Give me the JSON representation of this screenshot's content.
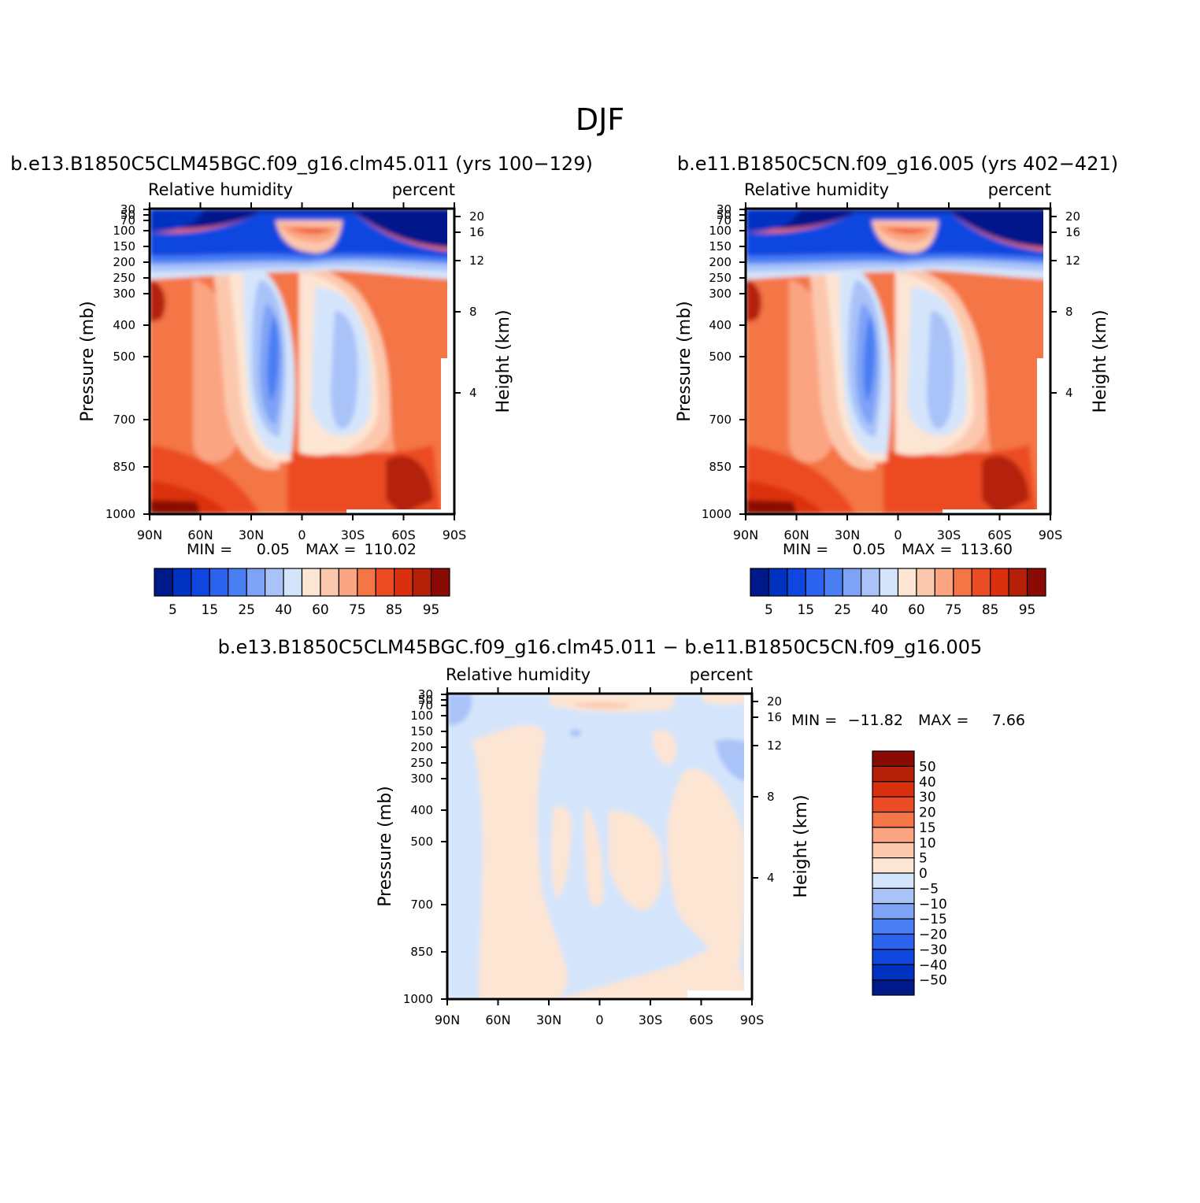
{
  "figure_title": "DJF",
  "chart_data": [
    {
      "type": "contour",
      "title": "b.e13.B1850C5CLM45BGC.f09_g16.clm45.011 (yrs 100−129)",
      "left_subtitle": "Relative humidity",
      "right_subtitle": "percent",
      "ylabel": "Pressure (mb)",
      "y2label": "Height (km)",
      "x_ticks": [
        "90N",
        "60N",
        "30N",
        "0",
        "30S",
        "60S",
        "90S"
      ],
      "y_ticks": [
        "30",
        "50",
        "70",
        "100",
        "150",
        "200",
        "250",
        "300",
        "400",
        "500",
        "700",
        "850",
        "1000"
      ],
      "y2_ticks": [
        "20",
        "16",
        "12",
        "8",
        "4"
      ],
      "min_label": "MIN =",
      "min_value": "0.05",
      "max_label": "MAX =",
      "max_value": "110.02",
      "colorbar_labels": [
        "5",
        "15",
        "25",
        "40",
        "60",
        "75",
        "85",
        "95"
      ],
      "colorbar_colors": [
        "#00198a",
        "#0032c2",
        "#1046e0",
        "#2b62ee",
        "#4a7ef3",
        "#7ea2f6",
        "#a9c3f9",
        "#d4e5fb",
        "#fde5d3",
        "#fcc8ad",
        "#fba482",
        "#f47545",
        "#ec4c24",
        "#db3010",
        "#b42008",
        "#8a0b05"
      ]
    },
    {
      "type": "contour",
      "title": "b.e11.B1850C5CN.f09_g16.005 (yrs 402−421)",
      "left_subtitle": "Relative humidity",
      "right_subtitle": "percent",
      "ylabel": "Pressure (mb)",
      "y2label": "Height (km)",
      "x_ticks": [
        "90N",
        "60N",
        "30N",
        "0",
        "30S",
        "60S",
        "90S"
      ],
      "y_ticks": [
        "30",
        "50",
        "70",
        "100",
        "150",
        "200",
        "250",
        "300",
        "400",
        "500",
        "700",
        "850",
        "1000"
      ],
      "y2_ticks": [
        "20",
        "16",
        "12",
        "8",
        "4"
      ],
      "min_label": "MIN =",
      "min_value": "0.05",
      "max_label": "MAX =",
      "max_value": "113.60",
      "colorbar_labels": [
        "5",
        "15",
        "25",
        "40",
        "60",
        "75",
        "85",
        "95"
      ],
      "colorbar_colors": [
        "#00198a",
        "#0032c2",
        "#1046e0",
        "#2b62ee",
        "#4a7ef3",
        "#7ea2f6",
        "#a9c3f9",
        "#d4e5fb",
        "#fde5d3",
        "#fcc8ad",
        "#fba482",
        "#f47545",
        "#ec4c24",
        "#db3010",
        "#b42008",
        "#8a0b05"
      ]
    },
    {
      "type": "contour",
      "title": "b.e13.B1850C5CLM45BGC.f09_g16.clm45.011 − b.e11.B1850C5CN.f09_g16.005",
      "left_subtitle": "Relative humidity",
      "right_subtitle": "percent",
      "ylabel": "Pressure (mb)",
      "y2label": "Height (km)",
      "x_ticks": [
        "90N",
        "60N",
        "30N",
        "0",
        "30S",
        "60S",
        "90S"
      ],
      "y_ticks": [
        "30",
        "50",
        "70",
        "100",
        "150",
        "200",
        "250",
        "300",
        "400",
        "500",
        "700",
        "850",
        "1000"
      ],
      "y2_ticks": [
        "20",
        "16",
        "12",
        "8",
        "4"
      ],
      "min_label": "MIN =",
      "min_value": "−11.82",
      "max_label": "MAX =",
      "max_value": "7.66",
      "colorbar_labels": [
        "50",
        "40",
        "30",
        "20",
        "15",
        "10",
        "5",
        "0",
        "−5",
        "−10",
        "−15",
        "−20",
        "−30",
        "−40",
        "−50"
      ],
      "colorbar_colors": [
        "#8a0b05",
        "#b42008",
        "#db3010",
        "#ec4c24",
        "#f47545",
        "#fba482",
        "#fcc8ad",
        "#fde5d3",
        "#d4e5fb",
        "#a9c3f9",
        "#7ea2f6",
        "#4a7ef3",
        "#2b62ee",
        "#1046e0",
        "#0032c2",
        "#00198a"
      ]
    }
  ]
}
